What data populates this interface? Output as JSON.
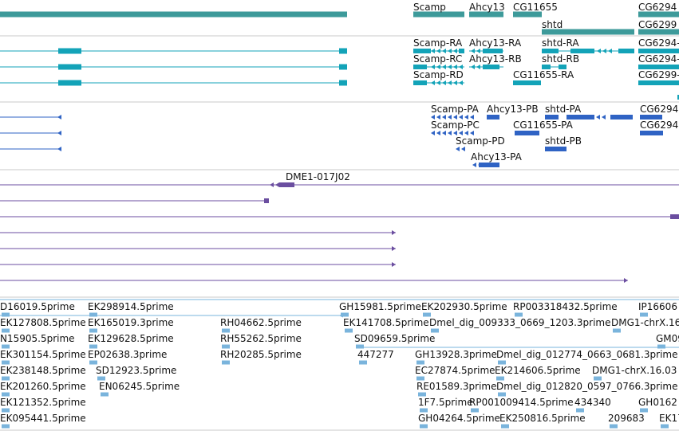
{
  "colors": {
    "gene": "#3d9a9a",
    "transcript": "#13a3b8",
    "protein": "#2f63c4",
    "clone": "#6b4ea0",
    "est": "#7ab4dc",
    "separator": "#c9c9c9"
  },
  "gene_track": {
    "labels": [
      "Scamp",
      "Ahcy13",
      "CG11655",
      "CG6294",
      "shtd",
      "CG6299"
    ]
  },
  "transcript_track": {
    "labels": [
      "Scamp-RA",
      "Ahcy13-RA",
      "shtd-RA",
      "CG6294-",
      "Scamp-RC",
      "Ahcy13-RB",
      "shtd-RB",
      "CG6294-",
      "Scamp-RD",
      "CG11655-RA",
      "CG6299-"
    ]
  },
  "protein_track": {
    "labels": [
      "Scamp-PA",
      "Ahcy13-PB",
      "shtd-PA",
      "CG6294",
      "Scamp-PC",
      "CG11655-PA",
      "CG6294",
      "Scamp-PD",
      "shtd-PB",
      "Ahcy13-PA"
    ]
  },
  "clone_track": {
    "labels": [
      "DME1-017J02"
    ]
  },
  "est_track": {
    "labels": [
      "D16019.5prime",
      "EK298914.5prime",
      "GH15981.5prime",
      "EK202930.5prime",
      "RP003318432.5prime",
      "IP16606",
      "EK127808.5prime",
      "EK165019.3prime",
      "RH04662.5prime",
      "EK141708.5prime",
      "Dmel_dig_009333_0669_1203.3prime",
      "DMG1-chrX.16",
      "N15905.5prime",
      "EK129628.5prime",
      "RH55262.5prime",
      "SD09659.5prime",
      "GM09",
      "EK301154.5prime",
      "EP02638.3prime",
      "RH20285.5prime",
      "447277",
      "GH13928.3prime",
      "Dmel_dig_012774_0663_0681.3prime",
      "EK238148.5prime",
      "SD12923.5prime",
      "EC27874.5prime",
      "EK214606.5prime",
      "DMG1-chrX.16.03",
      "EK201260.5prime",
      "EN06245.5prime",
      "RE01589.3prime",
      "Dmel_dig_012820_0597_0766.3prime",
      "EK121352.5prime",
      "1F7.5prime",
      "RP001009414.5prime",
      "434340",
      "GH0162",
      "EK095441.5prime",
      "GH04264.5prime",
      "EK250816.5prime",
      "209683",
      "EK17"
    ]
  }
}
